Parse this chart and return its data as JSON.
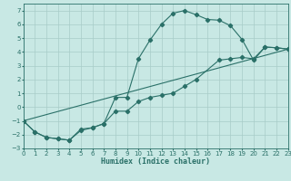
{
  "xlabel": "Humidex (Indice chaleur)",
  "bg_color": "#c8e8e4",
  "line_color": "#2a7068",
  "grid_color": "#a8ccc8",
  "xlim": [
    0,
    23
  ],
  "ylim": [
    -3,
    7.5
  ],
  "xticks": [
    0,
    1,
    2,
    3,
    4,
    5,
    6,
    7,
    8,
    9,
    10,
    11,
    12,
    13,
    14,
    15,
    16,
    17,
    18,
    19,
    20,
    21,
    22,
    23
  ],
  "yticks": [
    -3,
    -2,
    -1,
    0,
    1,
    2,
    3,
    4,
    5,
    6,
    7
  ],
  "curve1_x": [
    0,
    1,
    2,
    3,
    4,
    5,
    6,
    7,
    8,
    9,
    10,
    11,
    12,
    13,
    14,
    15,
    16,
    17,
    18,
    19,
    20,
    21,
    22,
    23
  ],
  "curve1_y": [
    -1.0,
    -1.8,
    -2.2,
    -2.3,
    -2.4,
    -1.6,
    -1.5,
    -1.2,
    0.7,
    0.7,
    3.5,
    4.85,
    6.0,
    6.8,
    7.0,
    6.7,
    6.35,
    6.3,
    5.9,
    4.9,
    3.4,
    4.35,
    4.3,
    4.2
  ],
  "curve2_x": [
    0,
    1,
    2,
    3,
    4,
    5,
    6,
    7,
    8,
    9,
    10,
    11,
    12,
    13,
    14,
    15,
    17,
    18,
    19,
    20,
    21,
    22,
    23
  ],
  "curve2_y": [
    -1.0,
    -1.8,
    -2.2,
    -2.3,
    -2.4,
    -1.7,
    -1.5,
    -1.2,
    -0.3,
    -0.3,
    0.4,
    0.7,
    0.85,
    1.0,
    1.5,
    2.0,
    3.4,
    3.5,
    3.6,
    3.5,
    4.35,
    4.3,
    4.2
  ],
  "line3_x": [
    0,
    23
  ],
  "line3_y": [
    -1.0,
    4.2
  ]
}
